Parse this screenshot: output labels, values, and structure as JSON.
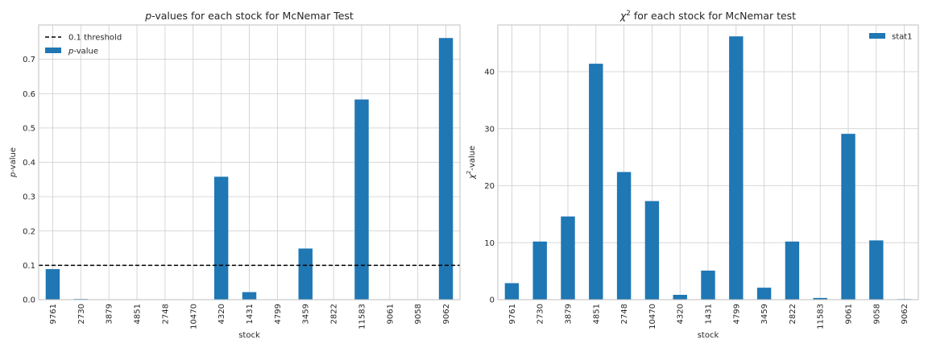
{
  "chart_data": [
    {
      "type": "bar",
      "title": {
        "prefix": "",
        "italic": "p",
        "suffix": "-values for each stock for McNemar Test"
      },
      "xlabel": "stock",
      "ylabel": {
        "italic": "p",
        "suffix": "-value"
      },
      "categories": [
        "9761",
        "2730",
        "3879",
        "4851",
        "2748",
        "10470",
        "4320",
        "1431",
        "4799",
        "3459",
        "2822",
        "11583",
        "9061",
        "9058",
        "9062"
      ],
      "series": [
        {
          "name": "p-value",
          "values": [
            0.089,
            0.002,
            0.0,
            0.0,
            0.0,
            0.0,
            0.358,
            0.022,
            0.0,
            0.149,
            0.001,
            0.583,
            0.0,
            0.0,
            0.762
          ]
        }
      ],
      "threshold": {
        "label": "0.1 threshold",
        "value": 0.1
      },
      "ylim": [
        0,
        0.8
      ],
      "yticks": [
        "0.0",
        "0.1",
        "0.2",
        "0.3",
        "0.4",
        "0.5",
        "0.6",
        "0.7"
      ],
      "grid": true,
      "legend_position": "top-left",
      "colors": {
        "bar": "#1f77b4",
        "threshold": "#000000",
        "grid": "#cccccc"
      }
    },
    {
      "type": "bar",
      "title": {
        "prefix": "",
        "italic": "χ",
        "sup": "2",
        "suffix": " for each stock for McNemar test"
      },
      "xlabel": "stock",
      "ylabel": {
        "italic": "χ",
        "sup": "2",
        "suffix": "-value"
      },
      "categories": [
        "9761",
        "2730",
        "3879",
        "4851",
        "2748",
        "10470",
        "4320",
        "1431",
        "4799",
        "3459",
        "2822",
        "11583",
        "9061",
        "9058",
        "9062"
      ],
      "series": [
        {
          "name": "stat1",
          "values": [
            2.9,
            10.2,
            14.6,
            41.4,
            22.4,
            17.3,
            0.85,
            5.1,
            46.2,
            2.1,
            10.2,
            0.3,
            29.1,
            10.4,
            0.1
          ]
        }
      ],
      "ylim": [
        0,
        48.2
      ],
      "yticks": [
        "0",
        "10",
        "20",
        "30",
        "40"
      ],
      "grid": true,
      "legend_position": "top-right",
      "colors": {
        "bar": "#1f77b4",
        "grid": "#cccccc"
      }
    }
  ]
}
